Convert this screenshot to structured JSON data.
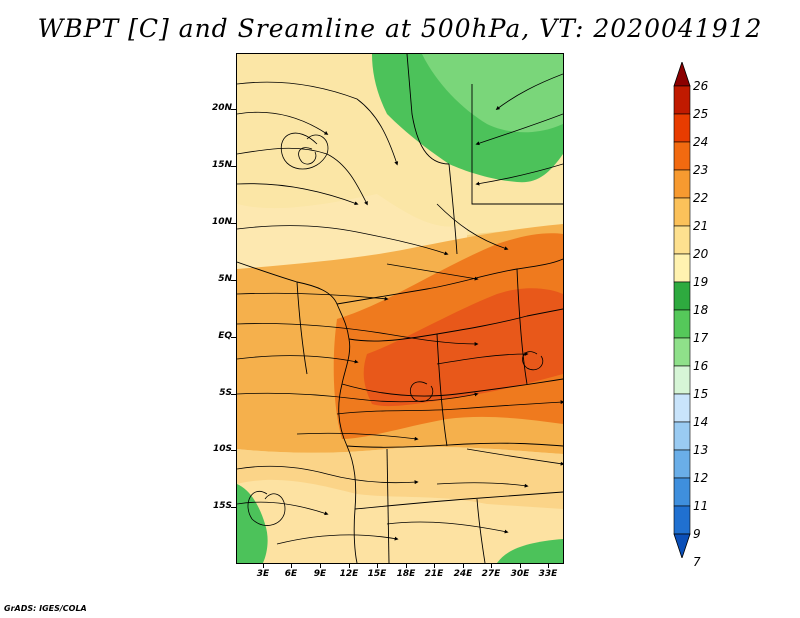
{
  "title": "WBPT [C] and Sreamline at 500hPa, VT: 2020041912",
  "credit": "GrADS: IGES/COLA",
  "lat_labels": [
    "20N",
    "15N",
    "10N",
    "5N",
    "EQ",
    "5S",
    "10S",
    "15S"
  ],
  "lon_labels": [
    "3E",
    "6E",
    "9E",
    "12E",
    "15E",
    "18E",
    "21E",
    "24E",
    "27E",
    "30E",
    "33E"
  ],
  "colorbar": {
    "labels": [
      "26",
      "25",
      "24",
      "23",
      "22",
      "21",
      "20",
      "19",
      "18",
      "17",
      "16",
      "15",
      "14",
      "13",
      "12",
      "11",
      "9",
      "7"
    ],
    "colors": [
      "#8b0000",
      "#c01a00",
      "#e83c00",
      "#f26a10",
      "#f79a30",
      "#fbc15a",
      "#fde08f",
      "#fff2b0",
      "#2eaa3f",
      "#55c85a",
      "#8fe08a",
      "#d6f5d6",
      "#c9e4fb",
      "#9acbf2",
      "#6aaee8",
      "#3f8fdd",
      "#2070d0",
      "#0b4fb8"
    ]
  },
  "map": {
    "field": "WBPT",
    "units": "C",
    "level": "500hPa",
    "overlay": "Streamline"
  }
}
